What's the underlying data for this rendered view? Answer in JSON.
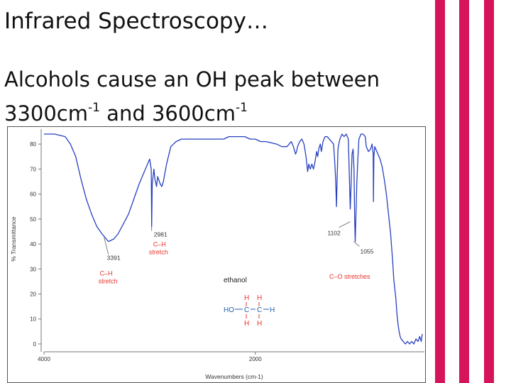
{
  "slide": {
    "title": "Infrared Spectroscopy…",
    "bullet": {
      "prefix": "Alcohols cause an OH peak between",
      "value1": "3300cm",
      "exp1": "-1",
      "joiner": " and ",
      "value2": "3600cm",
      "exp2": "-1"
    },
    "accent_color": "#d6145a"
  },
  "chart_data": {
    "type": "line",
    "xlabel": "Wavenumbers (cm-1)",
    "ylabel": "% Transmittance",
    "x_ticks": [
      "4000",
      "2000"
    ],
    "y_ticks": [
      "0",
      "10",
      "20",
      "30",
      "40",
      "50",
      "60",
      "70",
      "80"
    ],
    "xlim": [
      4000,
      400
    ],
    "ylim": [
      -2,
      86
    ],
    "series": [
      {
        "color": "#2740c0",
        "points": [
          [
            4000,
            84
          ],
          [
            3900,
            84
          ],
          [
            3800,
            83
          ],
          [
            3750,
            80
          ],
          [
            3700,
            75
          ],
          [
            3650,
            66
          ],
          [
            3600,
            58
          ],
          [
            3550,
            52
          ],
          [
            3500,
            47
          ],
          [
            3450,
            44
          ],
          [
            3391,
            41
          ],
          [
            3340,
            42
          ],
          [
            3300,
            44
          ],
          [
            3250,
            48
          ],
          [
            3200,
            52
          ],
          [
            3150,
            58
          ],
          [
            3100,
            64
          ],
          [
            3050,
            69
          ],
          [
            3020,
            72
          ],
          [
            3000,
            74
          ],
          [
            2985,
            70
          ],
          [
            2981,
            47
          ],
          [
            2976,
            64
          ],
          [
            2960,
            70
          ],
          [
            2950,
            66
          ],
          [
            2935,
            63
          ],
          [
            2925,
            67
          ],
          [
            2900,
            64
          ],
          [
            2885,
            63
          ],
          [
            2870,
            65
          ],
          [
            2840,
            72
          ],
          [
            2800,
            79
          ],
          [
            2750,
            81
          ],
          [
            2700,
            82
          ],
          [
            2600,
            82
          ],
          [
            2500,
            82
          ],
          [
            2400,
            82
          ],
          [
            2300,
            82
          ],
          [
            2250,
            83
          ],
          [
            2200,
            83
          ],
          [
            2100,
            83
          ],
          [
            2050,
            82
          ],
          [
            2000,
            82
          ],
          [
            1950,
            81
          ],
          [
            1900,
            81
          ],
          [
            1800,
            80
          ],
          [
            1750,
            79
          ],
          [
            1700,
            79
          ],
          [
            1660,
            81
          ],
          [
            1640,
            79
          ],
          [
            1620,
            76
          ],
          [
            1610,
            77
          ],
          [
            1600,
            79
          ],
          [
            1580,
            81
          ],
          [
            1560,
            82
          ],
          [
            1540,
            80
          ],
          [
            1520,
            75
          ],
          [
            1505,
            69
          ],
          [
            1495,
            72
          ],
          [
            1480,
            70
          ],
          [
            1465,
            72
          ],
          [
            1450,
            70
          ],
          [
            1435,
            73
          ],
          [
            1420,
            77
          ],
          [
            1410,
            75
          ],
          [
            1400,
            78
          ],
          [
            1385,
            80
          ],
          [
            1375,
            77
          ],
          [
            1360,
            81
          ],
          [
            1340,
            83
          ],
          [
            1320,
            83
          ],
          [
            1300,
            82
          ],
          [
            1280,
            81
          ],
          [
            1260,
            80
          ],
          [
            1250,
            74
          ],
          [
            1240,
            66
          ],
          [
            1232,
            55
          ],
          [
            1226,
            66
          ],
          [
            1218,
            78
          ],
          [
            1210,
            80
          ],
          [
            1200,
            82
          ],
          [
            1180,
            84
          ],
          [
            1160,
            83
          ],
          [
            1140,
            84
          ],
          [
            1120,
            82
          ],
          [
            1102,
            54
          ],
          [
            1095,
            62
          ],
          [
            1085,
            76
          ],
          [
            1075,
            78
          ],
          [
            1066,
            70
          ],
          [
            1060,
            50
          ],
          [
            1055,
            41
          ],
          [
            1050,
            48
          ],
          [
            1040,
            64
          ],
          [
            1030,
            74
          ],
          [
            1020,
            82
          ],
          [
            1000,
            84
          ],
          [
            980,
            84
          ],
          [
            960,
            83
          ],
          [
            950,
            79
          ],
          [
            930,
            77
          ],
          [
            910,
            78
          ],
          [
            895,
            80
          ],
          [
            885,
            76
          ],
          [
            882,
            57
          ],
          [
            878,
            75
          ],
          [
            870,
            79
          ],
          [
            850,
            77
          ],
          [
            820,
            74
          ],
          [
            800,
            71
          ],
          [
            780,
            66
          ],
          [
            760,
            60
          ],
          [
            740,
            52
          ],
          [
            720,
            44
          ],
          [
            700,
            33
          ],
          [
            690,
            26
          ],
          [
            680,
            22
          ],
          [
            670,
            18
          ],
          [
            660,
            12
          ],
          [
            650,
            8
          ],
          [
            640,
            5
          ],
          [
            630,
            3
          ],
          [
            620,
            2
          ],
          [
            600,
            1
          ],
          [
            580,
            0
          ],
          [
            560,
            1
          ],
          [
            540,
            0
          ],
          [
            520,
            1
          ],
          [
            500,
            0
          ],
          [
            480,
            2
          ],
          [
            460,
            1
          ],
          [
            445,
            3
          ],
          [
            430,
            1
          ],
          [
            420,
            4
          ]
        ]
      }
    ],
    "annotations": [
      {
        "peak_label": "3391",
        "x": 3391,
        "y": 41,
        "label": [
          "C–H",
          "stretch"
        ]
      },
      {
        "peak_label": "2981",
        "x": 2981,
        "y": 47,
        "label": [
          "C–H",
          "stretch"
        ]
      },
      {
        "peak_label": "1102",
        "x": 1102,
        "y": 54
      },
      {
        "peak_label": "1055",
        "x": 1055,
        "y": 41
      },
      {
        "label": [
          "C–O stretches"
        ]
      }
    ],
    "molecule": {
      "name": "ethanol",
      "rows": [
        {
          "text": [
            "H",
            "H"
          ]
        },
        {
          "text": [
            "HO",
            "C",
            "C",
            "H"
          ]
        },
        {
          "text": [
            "H",
            "H"
          ]
        }
      ]
    }
  }
}
